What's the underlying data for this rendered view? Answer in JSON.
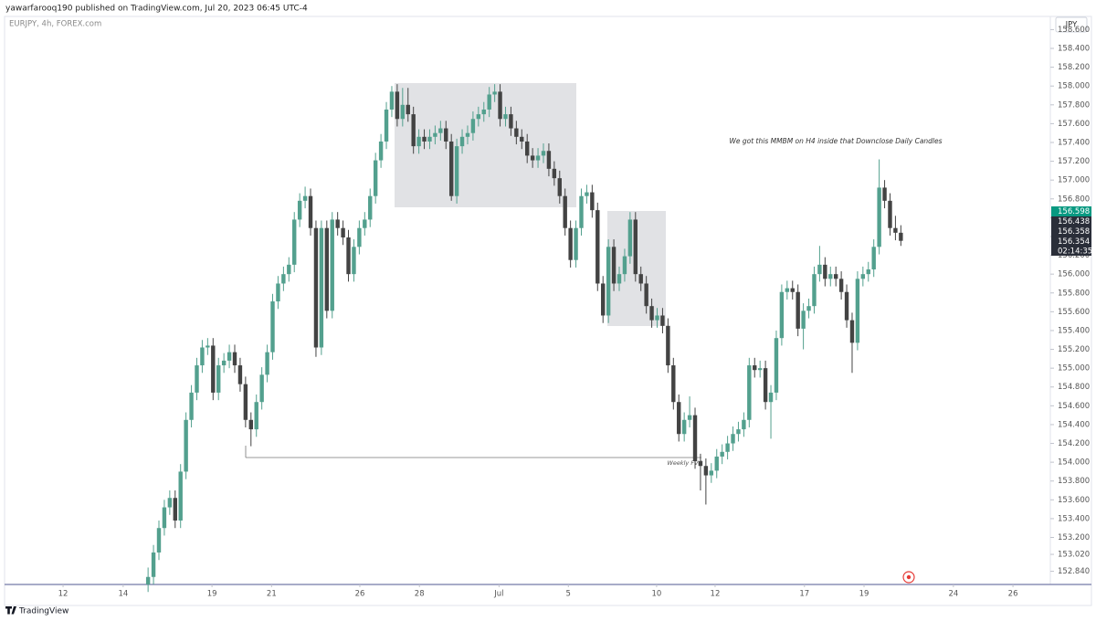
{
  "header": {
    "published": "yawarfarooq190 published on TradingView.com, Jul 20, 2023 06:45 UTC-4"
  },
  "footer": {
    "brand": "TradingView"
  },
  "chart_data": {
    "type": "candlestick",
    "legend": "EURJPY, 4h, FOREX.com",
    "currency": "JPY",
    "annotation": "We got this MMBM on H4 inside that Downclose Daily Candles",
    "level_label": "Weekly FVG",
    "up_color": "#53a08e",
    "down_color": "#434343",
    "grid": false,
    "price_labels": [
      "156.598",
      "156.438",
      "156.358",
      "156.354"
    ],
    "countdown": "02:14:35",
    "xlim": [
      -25.5,
      167.6
    ],
    "xticks": [
      {
        "value": -14.7,
        "label": "12"
      },
      {
        "value": -3.6,
        "label": "14"
      },
      {
        "value": 12.8,
        "label": "19"
      },
      {
        "value": 23.8,
        "label": "21"
      },
      {
        "value": 40.1,
        "label": "26"
      },
      {
        "value": 51.1,
        "label": "28"
      },
      {
        "value": 65.8,
        "label": "Jul"
      },
      {
        "value": 78.6,
        "label": "5"
      },
      {
        "value": 94.9,
        "label": "10"
      },
      {
        "value": 105.7,
        "label": "12"
      },
      {
        "value": 122.2,
        "label": "17"
      },
      {
        "value": 133.2,
        "label": "19"
      },
      {
        "value": 149.7,
        "label": "24"
      },
      {
        "value": 160.7,
        "label": "26"
      }
    ],
    "ylim": [
      152.7,
      158.74
    ],
    "yticks": [
      {
        "value": 152.84,
        "label": "152.840"
      },
      {
        "value": 153.02,
        "label": "153.020"
      },
      {
        "value": 153.2,
        "label": "153.200"
      },
      {
        "value": 153.4,
        "label": "153.400"
      },
      {
        "value": 153.6,
        "label": "153.600"
      },
      {
        "value": 153.8,
        "label": "153.800"
      },
      {
        "value": 154.0,
        "label": "154.000"
      },
      {
        "value": 154.2,
        "label": "154.200"
      },
      {
        "value": 154.4,
        "label": "154.400"
      },
      {
        "value": 154.6,
        "label": "154.600"
      },
      {
        "value": 154.8,
        "label": "154.800"
      },
      {
        "value": 155.0,
        "label": "155.000"
      },
      {
        "value": 155.2,
        "label": "155.200"
      },
      {
        "value": 155.4,
        "label": "155.400"
      },
      {
        "value": 155.6,
        "label": "155.600"
      },
      {
        "value": 155.8,
        "label": "155.800"
      },
      {
        "value": 156.0,
        "label": "156.000"
      },
      {
        "value": 156.2,
        "label": "156.200"
      },
      {
        "value": 156.4,
        "label": "156.400"
      },
      {
        "value": 156.6,
        "label": "156.600"
      },
      {
        "value": 156.8,
        "label": "156.800"
      },
      {
        "value": 157.0,
        "label": "157.000"
      },
      {
        "value": 157.2,
        "label": "157.200"
      },
      {
        "value": 157.4,
        "label": "157.400"
      },
      {
        "value": 157.6,
        "label": "157.600"
      },
      {
        "value": 157.8,
        "label": "157.800"
      },
      {
        "value": 158.0,
        "label": "158.000"
      },
      {
        "value": 158.2,
        "label": "158.200"
      },
      {
        "value": 158.4,
        "label": "158.400"
      },
      {
        "value": 158.6,
        "label": "158.600"
      }
    ],
    "x": [
      1,
      2,
      3,
      4,
      5,
      6,
      7,
      8,
      9,
      10,
      11,
      12,
      13,
      14,
      15,
      16,
      17,
      18,
      19,
      20,
      21,
      22,
      23,
      24,
      25,
      26,
      27,
      28,
      29,
      30,
      31,
      32,
      33,
      34,
      35,
      36,
      37,
      38,
      39,
      40,
      41,
      42,
      43,
      44,
      45,
      46,
      47,
      48,
      49,
      50,
      51,
      52,
      53,
      54,
      55,
      56,
      57,
      58,
      59,
      60,
      61,
      62,
      63,
      64,
      65,
      66,
      67,
      68,
      69,
      70,
      71,
      72,
      73,
      74,
      75,
      76,
      77,
      78,
      79,
      80,
      81,
      82,
      83,
      84,
      85,
      86,
      87,
      88,
      89,
      90,
      91,
      92,
      93,
      94,
      95,
      96,
      97,
      98,
      99,
      100,
      101,
      102,
      103,
      104,
      105,
      106,
      107,
      108,
      109,
      110,
      111,
      112,
      113,
      114,
      115,
      116,
      117,
      118,
      119,
      120,
      121,
      122,
      123,
      124,
      125,
      126,
      127,
      128,
      129,
      130,
      131,
      132,
      133,
      134,
      135,
      136,
      137,
      138,
      139,
      140
    ],
    "candles": [
      [
        152.7,
        152.88,
        152.62,
        152.78
      ],
      [
        152.78,
        153.12,
        152.7,
        153.04
      ],
      [
        153.04,
        153.38,
        152.96,
        153.3
      ],
      [
        153.3,
        153.6,
        153.22,
        153.52
      ],
      [
        153.52,
        153.7,
        153.44,
        153.62
      ],
      [
        153.62,
        153.7,
        153.3,
        153.38
      ],
      [
        153.38,
        153.98,
        153.3,
        153.9
      ],
      [
        153.9,
        154.53,
        153.82,
        154.45
      ],
      [
        154.45,
        154.82,
        154.37,
        154.74
      ],
      [
        154.74,
        155.11,
        154.66,
        155.03
      ],
      [
        155.03,
        155.3,
        154.95,
        155.22
      ],
      [
        155.22,
        155.32,
        155.14,
        155.24
      ],
      [
        155.24,
        155.32,
        154.66,
        154.74
      ],
      [
        154.74,
        155.11,
        154.66,
        155.03
      ],
      [
        155.03,
        155.16,
        154.95,
        155.08
      ],
      [
        155.08,
        155.25,
        155.0,
        155.17
      ],
      [
        155.17,
        155.25,
        154.95,
        155.03
      ],
      [
        155.03,
        155.11,
        154.75,
        154.83
      ],
      [
        154.83,
        154.91,
        154.37,
        154.45
      ],
      [
        154.45,
        154.53,
        154.17,
        154.35
      ],
      [
        154.35,
        154.72,
        154.27,
        154.64
      ],
      [
        154.64,
        155.01,
        154.56,
        154.93
      ],
      [
        154.93,
        155.25,
        154.85,
        155.17
      ],
      [
        155.17,
        155.79,
        155.09,
        155.71
      ],
      [
        155.71,
        155.98,
        155.63,
        155.9
      ],
      [
        155.9,
        156.08,
        155.82,
        156.0
      ],
      [
        156.0,
        156.18,
        155.92,
        156.1
      ],
      [
        156.1,
        156.66,
        156.02,
        156.58
      ],
      [
        156.58,
        156.86,
        156.5,
        156.78
      ],
      [
        156.78,
        156.93,
        156.7,
        156.83
      ],
      [
        156.83,
        156.91,
        156.41,
        156.49
      ],
      [
        156.49,
        156.57,
        155.12,
        155.22
      ],
      [
        155.22,
        156.57,
        155.14,
        156.49
      ],
      [
        156.49,
        156.57,
        155.53,
        155.61
      ],
      [
        155.61,
        156.66,
        155.53,
        156.58
      ],
      [
        156.58,
        156.66,
        156.41,
        156.49
      ],
      [
        156.49,
        156.57,
        156.31,
        156.39
      ],
      [
        156.39,
        156.47,
        155.92,
        156.0
      ],
      [
        156.0,
        156.37,
        155.92,
        156.29
      ],
      [
        156.29,
        156.57,
        156.21,
        156.49
      ],
      [
        156.49,
        156.66,
        156.41,
        156.58
      ],
      [
        156.58,
        156.91,
        156.5,
        156.83
      ],
      [
        156.83,
        157.29,
        156.75,
        157.21
      ],
      [
        157.21,
        157.49,
        157.13,
        157.41
      ],
      [
        157.41,
        157.83,
        157.33,
        157.75
      ],
      [
        157.75,
        158.0,
        157.67,
        157.94
      ],
      [
        157.94,
        158.02,
        157.57,
        157.65
      ],
      [
        157.65,
        157.98,
        157.57,
        157.8
      ],
      [
        157.8,
        157.98,
        157.62,
        157.7
      ],
      [
        157.7,
        157.78,
        157.28,
        157.36
      ],
      [
        157.36,
        157.54,
        157.28,
        157.46
      ],
      [
        157.46,
        157.54,
        157.33,
        157.41
      ],
      [
        157.41,
        157.54,
        157.33,
        157.46
      ],
      [
        157.46,
        157.58,
        157.38,
        157.5
      ],
      [
        157.5,
        157.63,
        157.42,
        157.55
      ],
      [
        157.55,
        157.63,
        157.33,
        157.41
      ],
      [
        157.41,
        157.49,
        156.78,
        156.83
      ],
      [
        156.83,
        157.44,
        156.75,
        157.36
      ],
      [
        157.36,
        157.54,
        157.28,
        157.46
      ],
      [
        157.46,
        157.58,
        157.38,
        157.5
      ],
      [
        157.5,
        157.73,
        157.42,
        157.65
      ],
      [
        157.65,
        157.78,
        157.57,
        157.7
      ],
      [
        157.7,
        157.83,
        157.62,
        157.75
      ],
      [
        157.75,
        157.99,
        157.67,
        157.91
      ],
      [
        157.91,
        158.02,
        157.83,
        157.94
      ],
      [
        157.94,
        158.02,
        157.57,
        157.65
      ],
      [
        157.65,
        157.78,
        157.57,
        157.7
      ],
      [
        157.7,
        157.78,
        157.47,
        157.55
      ],
      [
        157.55,
        157.63,
        157.38,
        157.46
      ],
      [
        157.46,
        157.54,
        157.33,
        157.41
      ],
      [
        157.41,
        157.49,
        157.18,
        157.26
      ],
      [
        157.26,
        157.34,
        157.13,
        157.21
      ],
      [
        157.21,
        157.34,
        157.13,
        157.26
      ],
      [
        157.26,
        157.39,
        157.18,
        157.31
      ],
      [
        157.31,
        157.39,
        157.04,
        157.12
      ],
      [
        157.12,
        157.2,
        156.94,
        157.02
      ],
      [
        157.02,
        157.1,
        156.75,
        156.83
      ],
      [
        156.83,
        156.91,
        156.41,
        156.49
      ],
      [
        156.49,
        156.57,
        156.07,
        156.15
      ],
      [
        156.15,
        156.57,
        156.07,
        156.49
      ],
      [
        156.49,
        156.91,
        156.41,
        156.83
      ],
      [
        156.83,
        156.95,
        156.75,
        156.87
      ],
      [
        156.87,
        156.95,
        156.6,
        156.68
      ],
      [
        156.68,
        156.76,
        155.82,
        155.9
      ],
      [
        155.9,
        155.98,
        155.48,
        155.56
      ],
      [
        155.56,
        156.37,
        155.48,
        156.29
      ],
      [
        156.29,
        156.37,
        155.82,
        155.9
      ],
      [
        155.9,
        156.08,
        155.82,
        156.0
      ],
      [
        156.0,
        156.27,
        155.92,
        156.19
      ],
      [
        156.19,
        156.66,
        156.11,
        156.58
      ],
      [
        156.58,
        156.66,
        155.92,
        156.0
      ],
      [
        156.0,
        156.08,
        155.82,
        155.9
      ],
      [
        155.9,
        155.98,
        155.58,
        155.66
      ],
      [
        155.66,
        155.74,
        155.43,
        155.51
      ],
      [
        155.51,
        155.64,
        155.43,
        155.56
      ],
      [
        155.56,
        155.64,
        155.37,
        155.45
      ],
      [
        155.45,
        155.53,
        154.95,
        155.03
      ],
      [
        155.03,
        155.11,
        154.56,
        154.64
      ],
      [
        154.64,
        154.72,
        154.22,
        154.3
      ],
      [
        154.3,
        154.53,
        154.22,
        154.45
      ],
      [
        154.45,
        154.7,
        154.37,
        154.5
      ],
      [
        154.5,
        154.58,
        153.93,
        154.01
      ],
      [
        154.01,
        154.09,
        153.7,
        153.96
      ],
      [
        153.96,
        154.04,
        153.55,
        153.86
      ],
      [
        153.86,
        153.99,
        153.78,
        153.91
      ],
      [
        153.91,
        154.14,
        153.83,
        154.06
      ],
      [
        154.06,
        154.19,
        153.98,
        154.11
      ],
      [
        154.11,
        154.28,
        154.03,
        154.2
      ],
      [
        154.2,
        154.38,
        154.12,
        154.3
      ],
      [
        154.3,
        154.43,
        154.22,
        154.35
      ],
      [
        154.35,
        154.53,
        154.27,
        154.45
      ],
      [
        154.45,
        155.11,
        154.37,
        155.03
      ],
      [
        155.03,
        155.11,
        154.9,
        154.98
      ],
      [
        154.98,
        155.08,
        154.9,
        155.0
      ],
      [
        155.0,
        155.08,
        154.56,
        154.64
      ],
      [
        154.64,
        154.82,
        154.25,
        154.74
      ],
      [
        154.74,
        155.4,
        154.66,
        155.32
      ],
      [
        155.32,
        155.89,
        155.24,
        155.81
      ],
      [
        155.81,
        155.93,
        155.73,
        155.85
      ],
      [
        155.85,
        155.93,
        155.73,
        155.81
      ],
      [
        155.81,
        155.89,
        155.34,
        155.42
      ],
      [
        155.42,
        155.69,
        155.2,
        155.61
      ],
      [
        155.61,
        155.74,
        155.53,
        155.66
      ],
      [
        155.66,
        156.08,
        155.58,
        156.0
      ],
      [
        156.0,
        156.3,
        155.92,
        156.1
      ],
      [
        156.1,
        156.18,
        155.87,
        155.95
      ],
      [
        155.95,
        156.08,
        155.87,
        156.0
      ],
      [
        156.0,
        156.08,
        155.87,
        155.95
      ],
      [
        155.95,
        156.03,
        155.73,
        155.81
      ],
      [
        155.81,
        155.89,
        155.43,
        155.51
      ],
      [
        155.51,
        155.59,
        154.95,
        155.27
      ],
      [
        155.27,
        156.03,
        155.19,
        155.95
      ],
      [
        155.95,
        156.08,
        155.87,
        156.0
      ],
      [
        156.0,
        156.13,
        155.92,
        156.05
      ],
      [
        156.05,
        156.37,
        155.97,
        156.29
      ],
      [
        156.29,
        157.22,
        156.21,
        156.92
      ],
      [
        156.92,
        157.0,
        156.7,
        156.78
      ],
      [
        156.78,
        156.86,
        156.41,
        156.49
      ],
      [
        156.49,
        156.62,
        156.36,
        156.44
      ],
      [
        156.44,
        156.52,
        156.3,
        156.354
      ]
    ]
  }
}
